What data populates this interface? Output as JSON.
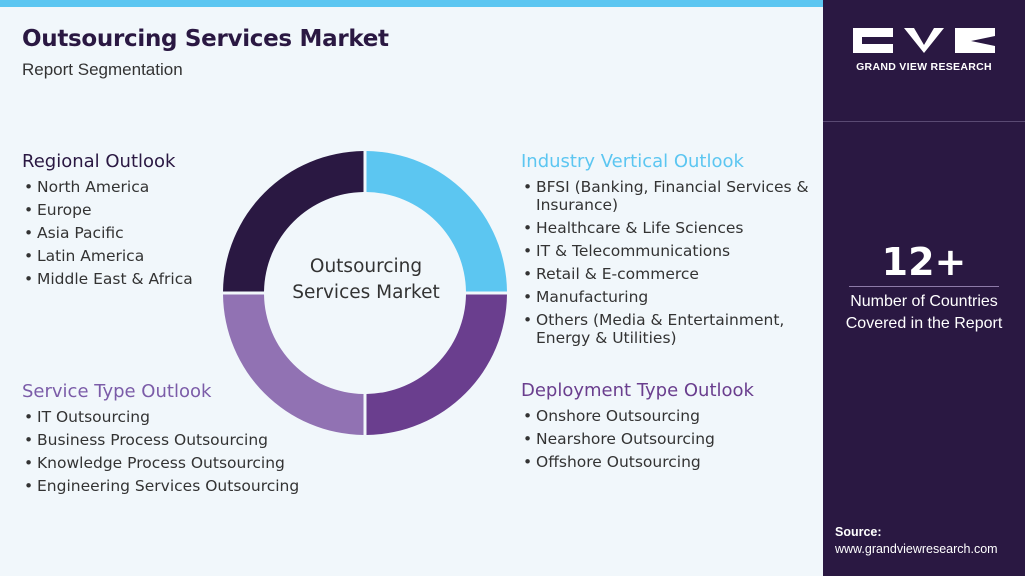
{
  "header": {
    "title": "Outsourcing Services Market",
    "subtitle": "Report Segmentation"
  },
  "colors": {
    "accent_top_bar": "#5cc6f1",
    "dark_purple": "#2a1842",
    "light_blue": "#5cc6f1",
    "medium_purple": "#6a3e8e",
    "lavender": "#9172b3"
  },
  "donut": {
    "center_label": "Outsourcing Services Market",
    "segments": [
      {
        "name": "industry",
        "color": "#5cc6f1"
      },
      {
        "name": "deployment",
        "color": "#6a3e8e"
      },
      {
        "name": "service",
        "color": "#9172b3"
      },
      {
        "name": "regional",
        "color": "#2a1842"
      }
    ]
  },
  "segments": {
    "regional": {
      "title": "Regional Outlook",
      "items": [
        "North America",
        "Europe",
        "Asia Pacific",
        "Latin America",
        "Middle East & Africa"
      ]
    },
    "industry": {
      "title": "Industry Vertical Outlook",
      "items": [
        "BFSI (Banking, Financial Services & Insurance)",
        "Healthcare & Life Sciences",
        "IT & Telecommunications",
        "Retail & E-commerce",
        "Manufacturing",
        "Others (Media & Entertainment, Energy & Utilities)"
      ]
    },
    "service": {
      "title": "Service Type Outlook",
      "items": [
        "IT Outsourcing",
        "Business Process Outsourcing",
        "Knowledge Process Outsourcing",
        "Engineering Services Outsourcing"
      ]
    },
    "deployment": {
      "title": "Deployment Type Outlook",
      "items": [
        "Onshore Outsourcing",
        "Nearshore Outsourcing",
        "Offshore Outsourcing"
      ]
    }
  },
  "sidebar": {
    "logo_text": "GRAND VIEW RESEARCH",
    "stat_value": "12+",
    "stat_label": "Number of Countries Covered in the Report",
    "source_label": "Source:",
    "source_url": "www.grandviewresearch.com"
  }
}
